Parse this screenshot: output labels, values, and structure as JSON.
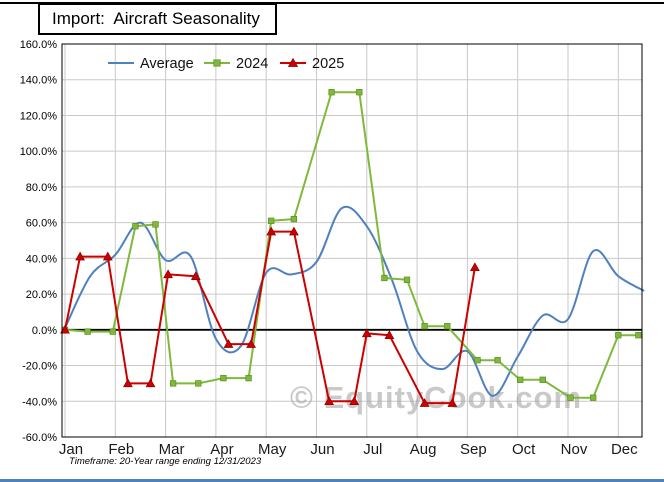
{
  "chart_data": {
    "type": "line",
    "title": "Import:  Aircraft Seasonality",
    "footnote": "Timeframe: 20-Year range ending 12/31/2023",
    "watermark": "© EquityCook.com",
    "xlabel": "",
    "ylabel": "",
    "x_axis": {
      "categories": [
        "Jan",
        "Feb",
        "Mar",
        "Apr",
        "May",
        "Jun",
        "Jul",
        "Aug",
        "Sep",
        "Oct",
        "Nov",
        "Dec"
      ],
      "note": "series x values are months from Jan=0 at roughly half-month resolution",
      "gridlines": true
    },
    "y_axis": {
      "min": -60,
      "max": 160,
      "tick_step": 20,
      "unit": "%",
      "tick_labels": [
        "160.0%",
        "140.0%",
        "120.0%",
        "100.0%",
        "80.0%",
        "60.0%",
        "40.0%",
        "20.0%",
        "0.0%",
        "-20.0%",
        "-40.0%",
        "-60.0%"
      ],
      "gridlines": true,
      "zero_line": true
    },
    "legend": {
      "position": "top-inside",
      "entries": [
        "Average",
        "2024",
        "2025"
      ]
    },
    "series": [
      {
        "name": "Average",
        "color": "#4F81BD",
        "marker": "none",
        "smooth": true,
        "x": [
          0,
          0.5,
          1,
          1.5,
          2,
          2.5,
          3,
          3.5,
          4,
          4.5,
          5,
          5.5,
          6,
          6.5,
          7,
          7.5,
          8,
          8.5,
          9,
          9.5,
          10,
          10.5,
          11,
          11.5
        ],
        "values": [
          1,
          30,
          42,
          60,
          39,
          41,
          -5,
          -9,
          32,
          31,
          38,
          68,
          58,
          28,
          -12,
          -22,
          -12,
          -37,
          -15,
          8,
          6,
          44,
          30,
          22
        ]
      },
      {
        "name": "2024",
        "color": "#7FB93C",
        "marker": "square",
        "smooth": false,
        "x": [
          0,
          0.45,
          0.95,
          1.4,
          1.8,
          2.15,
          2.65,
          3.15,
          3.65,
          4.1,
          4.55,
          5.3,
          5.85,
          6.35,
          6.8,
          7.15,
          7.6,
          8.2,
          8.6,
          9.05,
          9.5,
          10.05,
          10.5,
          11.0,
          11.4
        ],
        "values": [
          0,
          -1,
          -1,
          58,
          59,
          -30,
          -30,
          -27,
          -27,
          61,
          62,
          133,
          133,
          29,
          28,
          2,
          2,
          -17,
          -17,
          -28,
          -28,
          -38,
          -38,
          -3,
          -3
        ]
      },
      {
        "name": "2025",
        "color": "#CC0000",
        "marker": "triangle",
        "smooth": false,
        "x": [
          0,
          0.3,
          0.85,
          1.25,
          1.7,
          2.05,
          2.6,
          3.25,
          3.7,
          4.1,
          4.55,
          5.25,
          5.75,
          6.0,
          6.45,
          7.15,
          7.7,
          8.15
        ],
        "values": [
          0,
          41,
          41,
          -30,
          -30,
          31,
          30,
          -8,
          -8,
          55,
          55,
          -40,
          -40,
          -2,
          -3,
          -41,
          -41,
          35
        ]
      }
    ]
  }
}
